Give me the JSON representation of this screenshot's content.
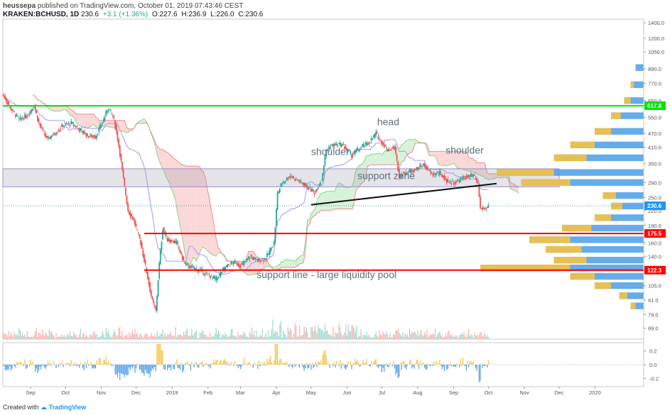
{
  "header": {
    "publisher": "heussepa",
    "published_text": "published on TradingView.com, October 01, 2019 07:43:46 CEST",
    "symbol": "KRAKEN:BCHUSD, 1D",
    "last": "230.6",
    "change": "+3.1 (+1.36%)",
    "open": "O:227.6",
    "high": "H:236.9",
    "low": "L:226.0",
    "close": "C:230.6"
  },
  "footer": {
    "created_with": "Created with",
    "brand": "TradingView"
  },
  "colors": {
    "bull": "#26a69a",
    "bear": "#ef5350",
    "green_line": "#00e600",
    "red_line": "#ff0000",
    "cloud_red": "#f9c9c9",
    "cloud_green": "#c8eecb",
    "profile_blue": "#4a9ee8",
    "profile_yellow": "#f5c242",
    "kijun": "#b0a8f0"
  },
  "chart_data": {
    "type": "candlestick",
    "y_scale": "log",
    "ylim": [
      62,
      1450
    ],
    "y_ticks": [
      "1400.0",
      "1200.0",
      "1050.0",
      "890.0",
      "770.0",
      "650.0",
      "550.0",
      "470.0",
      "410.0",
      "350.0",
      "290.0",
      "250.0",
      "220.0",
      "190.0",
      "160.0",
      "140.0",
      "122.3",
      "105.0",
      "91.0",
      "79.0",
      "69.0"
    ],
    "x_ticks": [
      "Sep",
      "Oct",
      "Nov",
      "Dec",
      "2019",
      "Feb",
      "Mar",
      "Apr",
      "May",
      "Jun",
      "Jul",
      "Aug",
      "Sep",
      "Oct",
      "Nov",
      "Dec",
      "2020"
    ],
    "x_range": [
      "2018-08-08",
      "2020-02-12"
    ],
    "price_labels": [
      {
        "value": 617.8,
        "text": "617.8",
        "color": "#00e600"
      },
      {
        "value": 230.6,
        "text": "230.6",
        "color": "#2196f3"
      },
      {
        "value": 175.5,
        "text": "175.5",
        "color": "#ff0000"
      },
      {
        "value": 122.3,
        "text": "122.3",
        "color": "#ff0000"
      }
    ],
    "annotations": [
      {
        "text": "head",
        "date": "2019-06-27",
        "price": 510
      },
      {
        "text": "shoulder",
        "date": "2019-05-01",
        "price": 380
      },
      {
        "text": "shoulder",
        "date": "2019-08-25",
        "price": 385
      },
      {
        "text": "support zone",
        "date": "2019-06-10",
        "price": 300
      },
      {
        "text": "support line - large liquidity pool",
        "date": "2019-03-15",
        "price": 113
      }
    ],
    "horizontal_lines": [
      {
        "price": 617.8,
        "from": "2018-08-08",
        "to": "2020-02-12",
        "color": "#00e600"
      },
      {
        "price": 175.5,
        "from": "2018-12-08",
        "to": "2020-02-12",
        "color": "#ff0000"
      },
      {
        "price": 122.3,
        "from": "2018-12-08",
        "to": "2020-02-12",
        "color": "#ff0000"
      }
    ],
    "support_zone": {
      "from": "2018-08-08",
      "to": "2019-12-01",
      "low": 278,
      "high": 332
    },
    "neckline": {
      "from": [
        "2019-05-01",
        233
      ],
      "to": [
        "2019-10-08",
        287
      ]
    },
    "price_path": [
      [
        "2018-08-08",
        690
      ],
      [
        "2018-08-15",
        600
      ],
      [
        "2018-08-22",
        540
      ],
      [
        "2018-08-29",
        560
      ],
      [
        "2018-09-04",
        620
      ],
      [
        "2018-09-08",
        520
      ],
      [
        "2018-09-15",
        445
      ],
      [
        "2018-09-22",
        470
      ],
      [
        "2018-09-29",
        510
      ],
      [
        "2018-10-06",
        520
      ],
      [
        "2018-10-13",
        490
      ],
      [
        "2018-10-20",
        460
      ],
      [
        "2018-10-27",
        455
      ],
      [
        "2018-11-03",
        540
      ],
      [
        "2018-11-07",
        610
      ],
      [
        "2018-11-12",
        540
      ],
      [
        "2018-11-16",
        420
      ],
      [
        "2018-11-20",
        300
      ],
      [
        "2018-11-24",
        220
      ],
      [
        "2018-11-29",
        200
      ],
      [
        "2018-12-05",
        160
      ],
      [
        "2018-12-10",
        120
      ],
      [
        "2018-12-15",
        90
      ],
      [
        "2018-12-18",
        82
      ],
      [
        "2018-12-21",
        130
      ],
      [
        "2018-12-24",
        185
      ],
      [
        "2018-12-28",
        165
      ],
      [
        "2019-01-05",
        160
      ],
      [
        "2019-01-12",
        130
      ],
      [
        "2019-01-19",
        125
      ],
      [
        "2019-01-26",
        121
      ],
      [
        "2019-02-02",
        116
      ],
      [
        "2019-02-08",
        112
      ],
      [
        "2019-02-16",
        126
      ],
      [
        "2019-02-23",
        132
      ],
      [
        "2019-03-02",
        128
      ],
      [
        "2019-03-09",
        140
      ],
      [
        "2019-03-16",
        134
      ],
      [
        "2019-03-23",
        138
      ],
      [
        "2019-03-30",
        160
      ],
      [
        "2019-04-02",
        260
      ],
      [
        "2019-04-06",
        290
      ],
      [
        "2019-04-13",
        310
      ],
      [
        "2019-04-20",
        295
      ],
      [
        "2019-04-27",
        280
      ],
      [
        "2019-05-04",
        262
      ],
      [
        "2019-05-10",
        300
      ],
      [
        "2019-05-14",
        400
      ],
      [
        "2019-05-20",
        420
      ],
      [
        "2019-05-28",
        420
      ],
      [
        "2019-06-05",
        380
      ],
      [
        "2019-06-13",
        410
      ],
      [
        "2019-06-20",
        430
      ],
      [
        "2019-06-26",
        470
      ],
      [
        "2019-07-01",
        430
      ],
      [
        "2019-07-06",
        400
      ],
      [
        "2019-07-12",
        410
      ],
      [
        "2019-07-16",
        310
      ],
      [
        "2019-07-22",
        320
      ],
      [
        "2019-07-30",
        330
      ],
      [
        "2019-08-06",
        345
      ],
      [
        "2019-08-13",
        315
      ],
      [
        "2019-08-20",
        318
      ],
      [
        "2019-08-27",
        292
      ],
      [
        "2019-09-03",
        290
      ],
      [
        "2019-09-10",
        305
      ],
      [
        "2019-09-18",
        310
      ],
      [
        "2019-09-22",
        285
      ],
      [
        "2019-09-24",
        225
      ],
      [
        "2019-09-28",
        223
      ],
      [
        "2019-10-01",
        230.6
      ]
    ],
    "volume_profile": [
      {
        "price": 900,
        "vol": 0.05,
        "yellow": 0.0
      },
      {
        "price": 760,
        "vol": 0.08,
        "yellow": 0.02
      },
      {
        "price": 650,
        "vol": 0.12,
        "yellow": 0.04
      },
      {
        "price": 560,
        "vol": 0.2,
        "yellow": 0.06
      },
      {
        "price": 480,
        "vol": 0.3,
        "yellow": 0.1
      },
      {
        "price": 420,
        "vol": 0.45,
        "yellow": 0.15
      },
      {
        "price": 370,
        "vol": 0.55,
        "yellow": 0.2
      },
      {
        "price": 320,
        "vol": 0.9,
        "yellow": 0.35
      },
      {
        "price": 290,
        "vol": 0.75,
        "yellow": 0.3
      },
      {
        "price": 255,
        "vol": 0.25,
        "yellow": 0.08
      },
      {
        "price": 230,
        "vol": 0.2,
        "yellow": 0.07
      },
      {
        "price": 205,
        "vol": 0.3,
        "yellow": 0.1
      },
      {
        "price": 185,
        "vol": 0.5,
        "yellow": 0.18
      },
      {
        "price": 165,
        "vol": 0.7,
        "yellow": 0.25
      },
      {
        "price": 150,
        "vol": 0.6,
        "yellow": 0.22
      },
      {
        "price": 135,
        "vol": 0.55,
        "yellow": 0.2
      },
      {
        "price": 125,
        "vol": 1.0,
        "yellow": 0.55
      },
      {
        "price": 115,
        "vol": 0.45,
        "yellow": 0.15
      },
      {
        "price": 105,
        "vol": 0.3,
        "yellow": 0.1
      },
      {
        "price": 95,
        "vol": 0.15,
        "yellow": 0.05
      },
      {
        "price": 86,
        "vol": 0.08,
        "yellow": 0.03
      }
    ],
    "oscillator": {
      "y_ticks": [
        "0.2",
        "0.0",
        "-0.2"
      ],
      "ylim": [
        -0.32,
        0.32
      ]
    }
  }
}
